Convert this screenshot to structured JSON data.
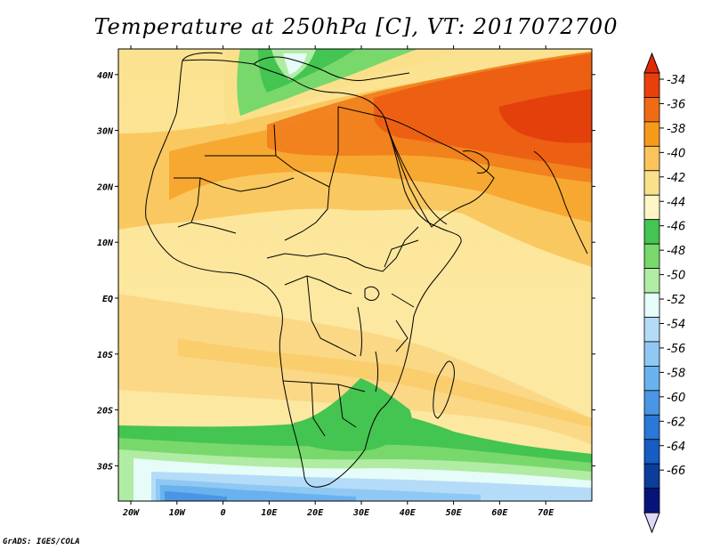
{
  "title": "Temperature at 250hPa [C], VT: 2017072700",
  "credit": "GrADS: IGES/COLA",
  "map": {
    "region": "Africa and Middle East",
    "variable": "Temperature",
    "level": "250hPa",
    "units": "C",
    "valid_time": "2017072700",
    "lat_labels": [
      "40N",
      "30N",
      "20N",
      "10N",
      "EQ",
      "10S",
      "20S",
      "30S"
    ],
    "lat_values": [
      40,
      30,
      20,
      10,
      0,
      -10,
      -20,
      -30
    ],
    "lon_labels": [
      "20W",
      "10W",
      "0",
      "10E",
      "20E",
      "30E",
      "40E",
      "50E",
      "60E",
      "70E"
    ],
    "lon_values": [
      -20,
      -10,
      0,
      10,
      20,
      30,
      40,
      50,
      60,
      70
    ]
  },
  "colorbar": {
    "labels": [
      "-34",
      "-36",
      "-38",
      "-40",
      "-42",
      "-44",
      "-46",
      "-48",
      "-50",
      "-52",
      "-54",
      "-56",
      "-58",
      "-60",
      "-62",
      "-64",
      "-66"
    ],
    "colors": [
      "#e8400c",
      "#f06c14",
      "#f69a1c",
      "#fac45a",
      "#fbe08c",
      "#fef6c4",
      "#44c450",
      "#78d86c",
      "#b0eca4",
      "#e6fcf8",
      "#b4dcf8",
      "#90c8f4",
      "#6ab2ee",
      "#4a96e4",
      "#2a78d8",
      "#165cc4",
      "#0c3c9c",
      "#06147a"
    ],
    "top_arrow_color": "#e02a08",
    "bottom_arrow_color": "#dcd8f8"
  }
}
